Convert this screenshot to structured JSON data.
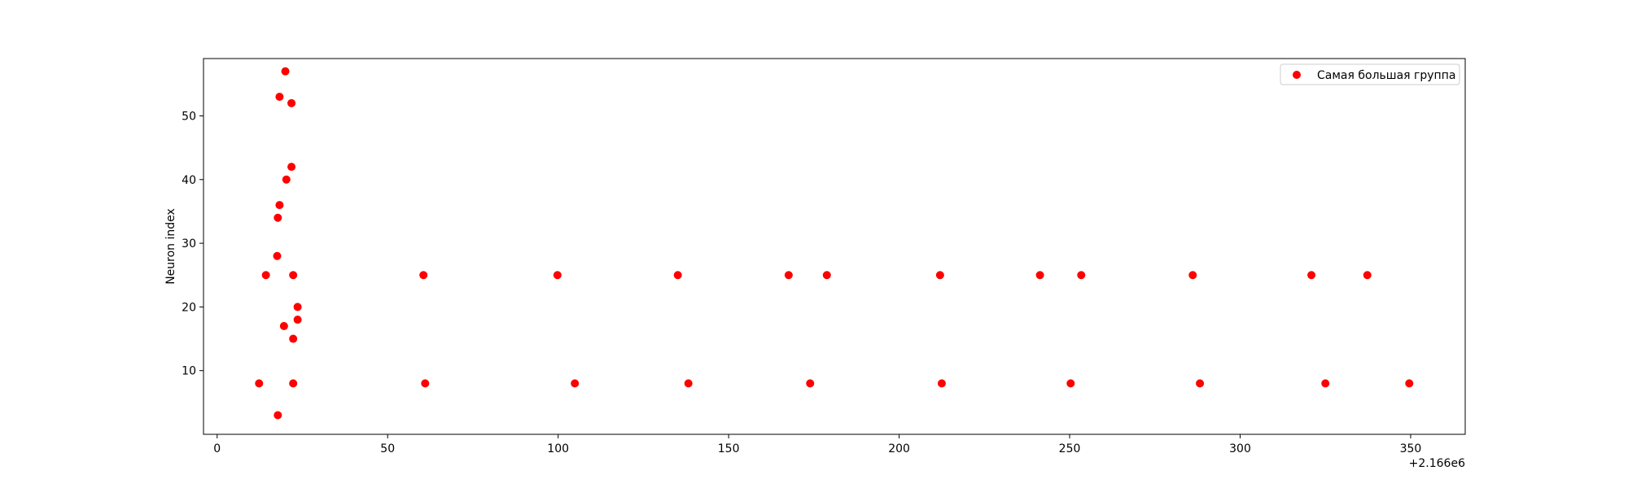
{
  "chart_data": {
    "type": "scatter",
    "title": "",
    "xlabel": "",
    "ylabel": "Neuron index",
    "x_offset_label": "+2.166e6",
    "xlim": [
      -4,
      366
    ],
    "ylim": [
      0,
      59
    ],
    "x_ticks": [
      0,
      50,
      100,
      150,
      200,
      250,
      300,
      350
    ],
    "y_ticks": [
      10,
      20,
      30,
      40,
      50
    ],
    "grid": false,
    "legend_position": "top-right",
    "series": [
      {
        "name": "Самая большая группа",
        "color": "#ff0000",
        "points": [
          {
            "x": 20.0,
            "y": 57
          },
          {
            "x": 18.3,
            "y": 53
          },
          {
            "x": 21.8,
            "y": 52
          },
          {
            "x": 21.8,
            "y": 42
          },
          {
            "x": 20.3,
            "y": 40
          },
          {
            "x": 18.3,
            "y": 36
          },
          {
            "x": 17.8,
            "y": 34
          },
          {
            "x": 17.6,
            "y": 28
          },
          {
            "x": 14.3,
            "y": 25
          },
          {
            "x": 22.3,
            "y": 25
          },
          {
            "x": 23.6,
            "y": 20
          },
          {
            "x": 23.6,
            "y": 18
          },
          {
            "x": 19.6,
            "y": 17
          },
          {
            "x": 22.3,
            "y": 15
          },
          {
            "x": 12.3,
            "y": 8
          },
          {
            "x": 22.3,
            "y": 8
          },
          {
            "x": 17.8,
            "y": 3
          },
          {
            "x": 60.5,
            "y": 25
          },
          {
            "x": 99.8,
            "y": 25
          },
          {
            "x": 135.1,
            "y": 25
          },
          {
            "x": 167.6,
            "y": 25
          },
          {
            "x": 178.8,
            "y": 25
          },
          {
            "x": 212.0,
            "y": 25
          },
          {
            "x": 241.3,
            "y": 25
          },
          {
            "x": 253.4,
            "y": 25
          },
          {
            "x": 286.1,
            "y": 25
          },
          {
            "x": 320.9,
            "y": 25
          },
          {
            "x": 337.3,
            "y": 25
          },
          {
            "x": 61.0,
            "y": 8
          },
          {
            "x": 104.9,
            "y": 8
          },
          {
            "x": 138.2,
            "y": 8
          },
          {
            "x": 173.9,
            "y": 8
          },
          {
            "x": 212.5,
            "y": 8
          },
          {
            "x": 250.3,
            "y": 8
          },
          {
            "x": 288.2,
            "y": 8
          },
          {
            "x": 325.0,
            "y": 8
          },
          {
            "x": 349.6,
            "y": 8
          }
        ]
      }
    ]
  }
}
